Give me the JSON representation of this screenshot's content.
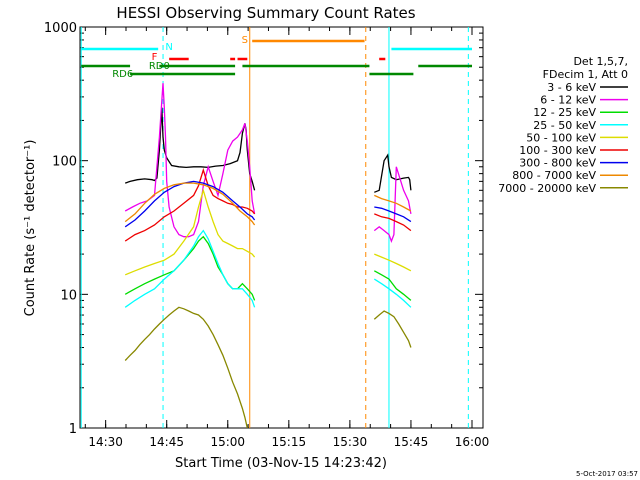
{
  "chart_data": {
    "type": "line",
    "title": "HESSI Observing Summary Count Rates",
    "xlabel": "Start Time (03-Nov-15 14:23:42)",
    "ylabel": "Count Rate (s⁻¹ detector⁻¹)",
    "y_scale": "log",
    "xlim": [
      14.395,
      16.045
    ],
    "ylim": [
      1,
      1000
    ],
    "x_ticks": [
      "14:30",
      "14:45",
      "15:00",
      "15:15",
      "15:30",
      "15:45",
      "16:00"
    ],
    "y_ticks": [
      "1",
      "10",
      "100",
      "1000"
    ],
    "info": [
      "Det 1,5,7,",
      "FDecim 1, Att 0"
    ],
    "timestamp": "5-Oct-2017 03:57",
    "legend_placement": "right",
    "series": [
      {
        "name": "3 - 6 keV",
        "color": "#000000",
        "x": [
          14.58,
          14.6,
          14.63,
          14.66,
          14.69,
          14.7,
          14.71,
          14.72,
          14.73,
          14.735,
          14.74,
          14.75,
          14.77,
          14.8,
          14.83,
          14.86,
          14.89,
          14.92,
          14.95,
          14.98,
          15.01,
          15.04,
          15.05,
          15.06,
          15.07,
          15.075,
          15.08,
          15.09,
          15.1,
          15.11,
          15.6,
          15.62,
          15.64,
          15.655,
          15.66,
          15.67,
          15.69,
          15.72,
          15.74,
          15.745,
          15.75
        ],
        "y": [
          68,
          70,
          72,
          73,
          72,
          71,
          74,
          120,
          250,
          150,
          120,
          105,
          92,
          90,
          89,
          90,
          90,
          89,
          91,
          92,
          95,
          100,
          115,
          160,
          190,
          170,
          120,
          80,
          70,
          60,
          58,
          60,
          100,
          110,
          90,
          75,
          72,
          74,
          75,
          72,
          60
        ]
      },
      {
        "name": "6 - 12 keV",
        "color": "#ee00ee",
        "x": [
          14.58,
          14.61,
          14.64,
          14.67,
          14.7,
          14.72,
          14.735,
          14.74,
          14.745,
          14.75,
          14.76,
          14.78,
          14.8,
          14.82,
          14.84,
          14.86,
          14.88,
          14.9,
          14.92,
          14.94,
          14.96,
          14.98,
          15.0,
          15.02,
          15.04,
          15.06,
          15.07,
          15.08,
          15.09,
          15.1,
          15.11,
          15.6,
          15.62,
          15.64,
          15.66,
          15.67,
          15.68,
          15.69,
          15.72,
          15.74,
          15.75
        ],
        "y": [
          42,
          45,
          48,
          50,
          55,
          150,
          380,
          250,
          150,
          70,
          45,
          32,
          28,
          27,
          27,
          28,
          35,
          65,
          90,
          70,
          55,
          80,
          120,
          140,
          150,
          170,
          190,
          140,
          90,
          50,
          40,
          30,
          32,
          30,
          28,
          25,
          28,
          90,
          60,
          50,
          40
        ]
      },
      {
        "name": "12 - 25 keV",
        "color": "#00dd00",
        "x": [
          14.58,
          14.62,
          14.66,
          14.7,
          14.74,
          14.78,
          14.82,
          14.86,
          14.88,
          14.9,
          14.92,
          14.94,
          14.96,
          14.98,
          15.0,
          15.02,
          15.04,
          15.06,
          15.08,
          15.1,
          15.11,
          15.6,
          15.63,
          15.66,
          15.69,
          15.72,
          15.75
        ],
        "y": [
          10,
          11,
          12,
          13,
          14,
          15,
          18,
          22,
          25,
          27,
          24,
          20,
          16,
          14,
          12,
          11,
          11,
          12,
          11,
          10,
          9,
          15,
          14,
          13,
          11,
          10,
          9
        ]
      },
      {
        "name": "25 - 50 keV",
        "color": "#00ffff",
        "x": [
          14.58,
          14.62,
          14.66,
          14.7,
          14.74,
          14.78,
          14.82,
          14.86,
          14.88,
          14.9,
          14.92,
          14.94,
          14.96,
          14.98,
          15.0,
          15.02,
          15.04,
          15.06,
          15.08,
          15.1,
          15.11,
          15.6,
          15.63,
          15.66,
          15.69,
          15.72,
          15.75
        ],
        "y": [
          8,
          9,
          10,
          11,
          13,
          15,
          18,
          23,
          27,
          30,
          26,
          21,
          17,
          14,
          12,
          11,
          11,
          11,
          10,
          9,
          8,
          13,
          12,
          11,
          10,
          9,
          8
        ]
      },
      {
        "name": "50 - 100 keV",
        "color": "#dddd00",
        "x": [
          14.58,
          14.62,
          14.66,
          14.7,
          14.74,
          14.78,
          14.82,
          14.86,
          14.88,
          14.9,
          14.92,
          14.94,
          14.96,
          14.98,
          15.0,
          15.02,
          15.04,
          15.06,
          15.08,
          15.1,
          15.11,
          15.6,
          15.63,
          15.66,
          15.69,
          15.72,
          15.75
        ],
        "y": [
          14,
          15,
          16,
          17,
          18,
          20,
          25,
          32,
          45,
          60,
          45,
          35,
          28,
          25,
          24,
          23,
          22,
          22,
          21,
          20,
          19,
          20,
          19,
          18,
          17,
          16,
          15
        ]
      },
      {
        "name": "100 - 300 keV",
        "color": "#ee0000",
        "x": [
          14.58,
          14.62,
          14.66,
          14.7,
          14.74,
          14.78,
          14.82,
          14.86,
          14.88,
          14.9,
          14.92,
          14.94,
          14.96,
          14.98,
          15.0,
          15.02,
          15.04,
          15.06,
          15.08,
          15.1,
          15.11,
          15.6,
          15.63,
          15.66,
          15.69,
          15.72,
          15.75
        ],
        "y": [
          25,
          28,
          30,
          33,
          38,
          42,
          48,
          55,
          65,
          85,
          65,
          55,
          52,
          50,
          48,
          47,
          45,
          45,
          44,
          42,
          40,
          40,
          38,
          37,
          35,
          33,
          30
        ]
      },
      {
        "name": "300 - 800 keV",
        "color": "#0000ee",
        "x": [
          14.58,
          14.62,
          14.66,
          14.7,
          14.74,
          14.78,
          14.82,
          14.86,
          14.9,
          14.94,
          14.98,
          15.02,
          15.05,
          15.08,
          15.1,
          15.11,
          15.6,
          15.63,
          15.66,
          15.69,
          15.72,
          15.75
        ],
        "y": [
          32,
          36,
          42,
          50,
          58,
          64,
          68,
          70,
          68,
          64,
          58,
          50,
          45,
          40,
          38,
          36,
          45,
          44,
          42,
          40,
          38,
          35
        ]
      },
      {
        "name": "800 - 7000 keV",
        "color": "#ee8800",
        "x": [
          14.58,
          14.62,
          14.66,
          14.7,
          14.74,
          14.78,
          14.82,
          14.86,
          14.9,
          14.94,
          14.98,
          15.02,
          15.05,
          15.08,
          15.1,
          15.11,
          15.6,
          15.63,
          15.66,
          15.69,
          15.72,
          15.75
        ],
        "y": [
          35,
          40,
          48,
          56,
          62,
          66,
          68,
          68,
          66,
          62,
          56,
          48,
          42,
          38,
          35,
          33,
          55,
          52,
          50,
          48,
          45,
          42
        ]
      },
      {
        "name": "7000 - 20000 keV",
        "color": "#888800",
        "x": [
          14.58,
          14.6,
          14.62,
          14.64,
          14.66,
          14.68,
          14.7,
          14.72,
          14.74,
          14.76,
          14.78,
          14.8,
          14.82,
          14.84,
          14.86,
          14.88,
          14.9,
          14.92,
          14.94,
          14.96,
          14.98,
          15.0,
          15.02,
          15.04,
          15.06,
          15.07,
          15.08,
          15.6,
          15.62,
          15.64,
          15.66,
          15.68,
          15.7,
          15.72,
          15.74,
          15.75
        ],
        "y": [
          3.2,
          3.5,
          3.8,
          4.2,
          4.6,
          5.0,
          5.5,
          6.0,
          6.5,
          7.0,
          7.5,
          8.0,
          7.8,
          7.5,
          7.2,
          7.0,
          6.5,
          5.8,
          5.0,
          4.2,
          3.5,
          2.8,
          2.2,
          1.8,
          1.4,
          1.2,
          1.0,
          6.5,
          7.0,
          7.5,
          7.2,
          6.8,
          6.0,
          5.2,
          4.5,
          4.0
        ]
      }
    ],
    "flags": [
      {
        "label": "N",
        "color": "#00ffff"
      },
      {
        "label": "F",
        "color": "#ff0000"
      },
      {
        "label": "RD0",
        "color": "#008800"
      },
      {
        "label": "RD6",
        "color": "#008800"
      },
      {
        "label": "S",
        "color": "#ff8800"
      }
    ]
  }
}
